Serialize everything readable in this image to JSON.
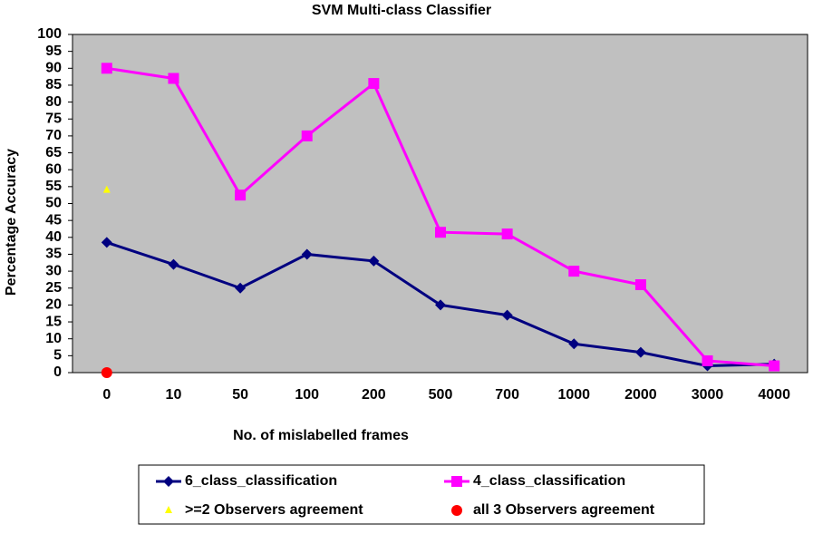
{
  "chart_data": {
    "type": "line",
    "title": "SVM Multi-class Classifier",
    "x_label": "No. of mislabelled frames",
    "y_label": "Percentage Accuracy",
    "categories": [
      "0",
      "10",
      "50",
      "100",
      "200",
      "500",
      "700",
      "1000",
      "2000",
      "3000",
      "4000"
    ],
    "series": [
      {
        "name": "6_class_classification",
        "color": "#000080",
        "marker": "diamond",
        "values": [
          38.5,
          32,
          25,
          35,
          33,
          20,
          17,
          8.5,
          6,
          2,
          2.5
        ]
      },
      {
        "name": "4_class_classification",
        "color": "#ff00ff",
        "marker": "square",
        "values": [
          90,
          87,
          52.5,
          70,
          85.5,
          41.5,
          41,
          30,
          26,
          3.5,
          2
        ]
      },
      {
        "name": ">=2 Observers agreement",
        "color": "#ffff00",
        "marker": "triangle",
        "values": [
          54,
          null,
          null,
          null,
          null,
          null,
          null,
          null,
          null,
          null,
          null
        ]
      },
      {
        "name": "all 3 Observers agreement",
        "color": "#ff0000",
        "marker": "circle",
        "values": [
          0,
          null,
          null,
          null,
          null,
          null,
          null,
          null,
          null,
          null,
          null
        ]
      }
    ],
    "ylim": [
      0,
      100
    ],
    "yticks": [
      0,
      5,
      10,
      15,
      20,
      25,
      30,
      35,
      40,
      45,
      50,
      55,
      60,
      65,
      70,
      75,
      80,
      85,
      90,
      95,
      100
    ],
    "grid": false,
    "legend": "bottom"
  }
}
